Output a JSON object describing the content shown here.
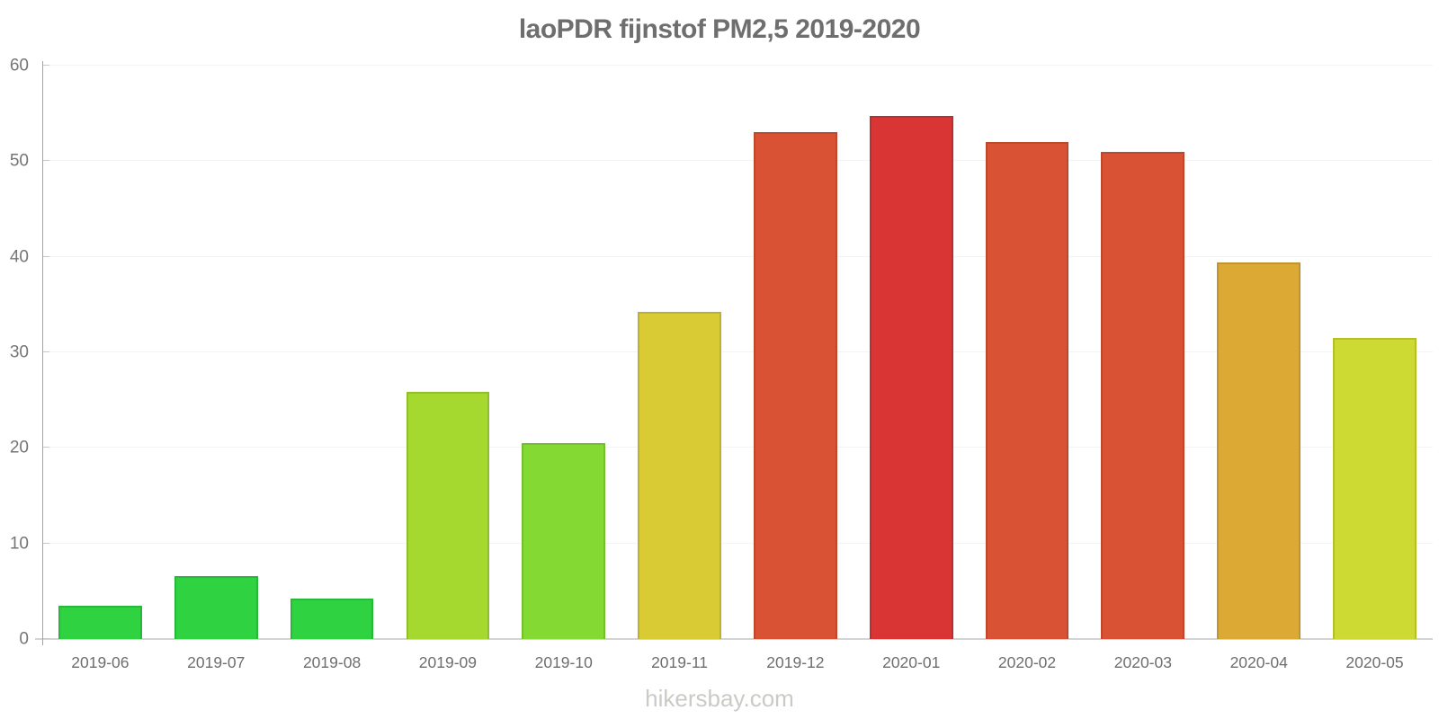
{
  "page": {
    "title": "laoPDR fijnstof PM2,5 2019-2020"
  },
  "footer": {
    "watermark": "hikersbay.com"
  },
  "chart_data": {
    "type": "bar",
    "title": "laoPDR fijnstof PM2,5 2019-2020",
    "categories": [
      "2019-06",
      "2019-07",
      "2019-08",
      "2019-09",
      "2019-10",
      "2019-11",
      "2019-12",
      "2020-01",
      "2020-02",
      "2020-03",
      "2020-04",
      "2020-05"
    ],
    "values": [
      3.5,
      6.6,
      4.2,
      25.9,
      20.5,
      34.2,
      53,
      54.7,
      52,
      51,
      39.4,
      31.5
    ],
    "bar_colors": [
      "#2fd342",
      "#2fd342",
      "#2fd342",
      "#a6d930",
      "#84da33",
      "#d9cb33",
      "#d95233",
      "#d93535",
      "#d95233",
      "#d95233",
      "#dcaa34",
      "#cdda33"
    ],
    "xlabel": "",
    "ylabel": "",
    "ylim": [
      0,
      60
    ],
    "yticks": [
      0,
      10,
      20,
      30,
      40,
      50,
      60
    ],
    "grid": "faint horizontal gridlines",
    "legend": "none",
    "colors": {
      "title_text": "#6e6e6e",
      "axis_line": "#a3a3a3",
      "baseline": "#d4d4d4",
      "gridline": "#f4f4f4",
      "tick_label": "#757575",
      "category_label": "#6e6e6e",
      "watermark_text": "#cbcac5",
      "background": "#ffffff"
    }
  }
}
